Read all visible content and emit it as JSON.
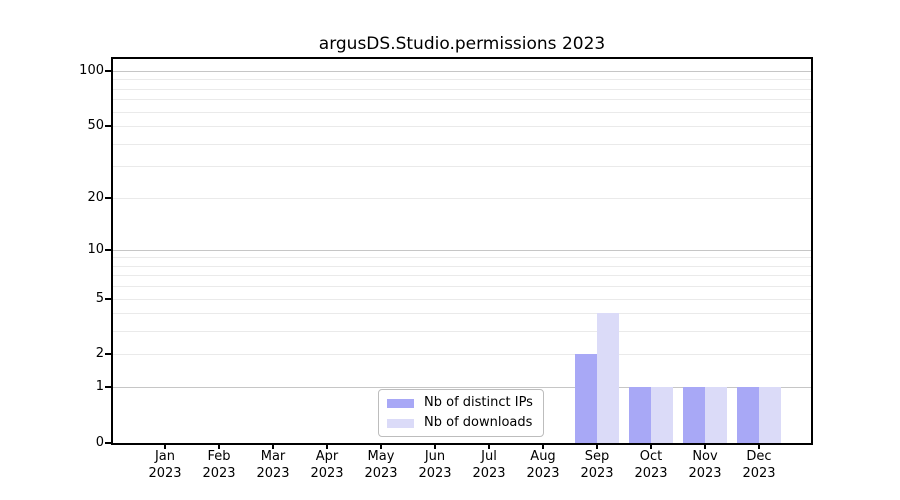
{
  "title": "argusDS.Studio.permissions 2023",
  "chart_data": {
    "type": "bar",
    "title": "argusDS.Studio.permissions 2023",
    "categories": [
      "Jan 2023",
      "Feb 2023",
      "Mar 2023",
      "Apr 2023",
      "May 2023",
      "Jun 2023",
      "Jul 2023",
      "Aug 2023",
      "Sep 2023",
      "Oct 2023",
      "Nov 2023",
      "Dec 2023"
    ],
    "series": [
      {
        "name": "Nb of distinct IPs",
        "color": "#a8a8f6",
        "values": [
          0,
          0,
          0,
          0,
          0,
          0,
          0,
          0,
          2,
          1,
          1,
          1
        ]
      },
      {
        "name": "Nb of downloads",
        "color": "#dbdbf8",
        "values": [
          0,
          0,
          0,
          0,
          0,
          0,
          0,
          0,
          4,
          1,
          1,
          1
        ]
      }
    ],
    "y_scale": "log10(1+x)",
    "ylim": [
      0,
      116
    ],
    "y_tick_labels": [
      0,
      1,
      2,
      5,
      10,
      20,
      50,
      100
    ],
    "y_major_gridlines": [
      1,
      10,
      100
    ],
    "y_minor_gridlines": [
      2,
      3,
      4,
      5,
      6,
      7,
      8,
      9,
      20,
      30,
      40,
      50,
      60,
      70,
      80,
      90
    ],
    "grid": true,
    "legend_position": "lower center"
  },
  "legend": {
    "items": [
      "Nb of distinct IPs",
      "Nb of downloads"
    ]
  },
  "colors": {
    "background": "#ffffff",
    "spine": "#000000",
    "text": "#000000",
    "grid_major": "#c6c6c6",
    "grid_minor": "#eaeaea",
    "legend_border": "#bdbdbd",
    "series_distinct_ips": "#a8a8f6",
    "series_downloads": "#dbdbf8"
  }
}
